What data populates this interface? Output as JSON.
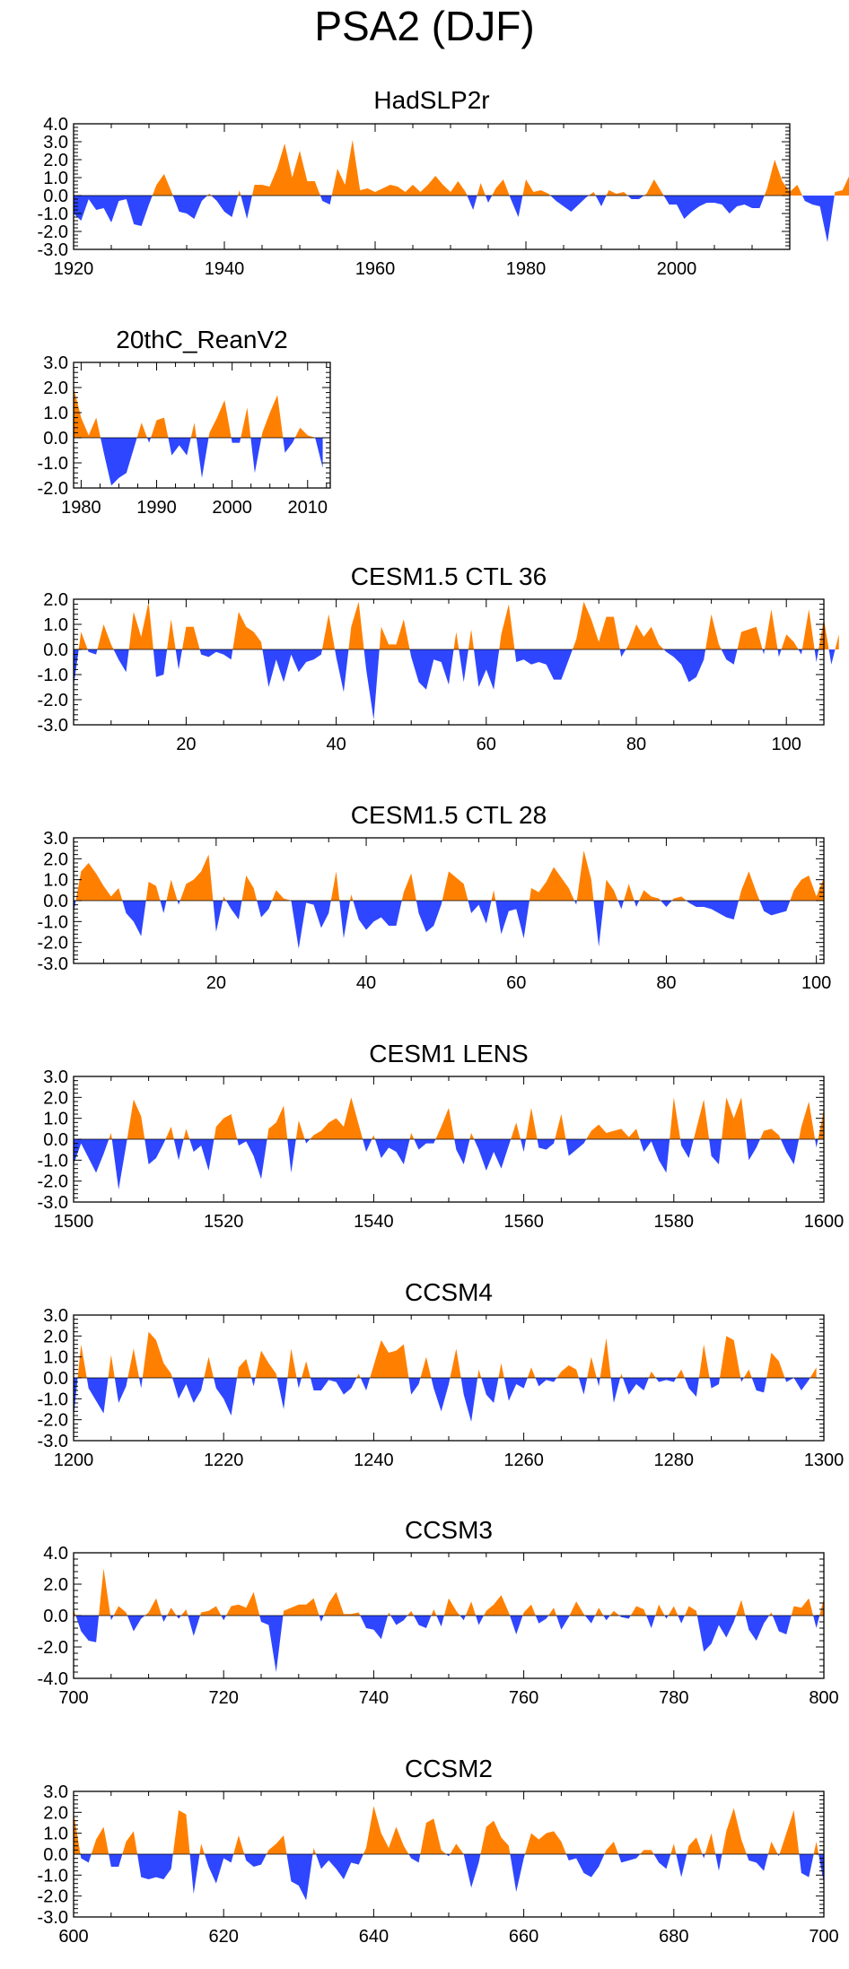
{
  "title": "PSA2 (DJF)",
  "colors": {
    "positive": "#ff8000",
    "negative": "#2e46ff",
    "axis": "#000000"
  },
  "chart_data": [
    {
      "type": "area",
      "title": "HadSLP2r",
      "xlim": [
        1920,
        2015
      ],
      "ylim": [
        -3.0,
        4.0
      ],
      "xticks": [
        1920,
        1940,
        1960,
        1980,
        2000
      ],
      "yticks": [
        "4.0",
        "3.0",
        "2.0",
        "1.0",
        "0.0",
        "-1.0",
        "-2.0",
        "-3.0"
      ],
      "ytick_values": [
        4,
        3,
        2,
        1,
        0,
        -1,
        -2,
        -3
      ],
      "x_start": 1920,
      "values": [
        -1.0,
        -1.4,
        -0.2,
        -0.8,
        -0.7,
        -1.5,
        -0.3,
        -0.2,
        -1.6,
        -1.7,
        -0.5,
        0.6,
        1.2,
        0.2,
        -0.9,
        -1.0,
        -1.3,
        -0.3,
        0.1,
        -0.3,
        -0.9,
        -1.2,
        0.3,
        -1.3,
        0.6,
        0.6,
        0.5,
        1.5,
        2.9,
        1.0,
        2.5,
        0.8,
        0.8,
        -0.3,
        -0.5,
        1.5,
        0.6,
        3.1,
        0.3,
        0.4,
        0.2,
        0.4,
        0.6,
        0.5,
        0.2,
        0.6,
        0.2,
        0.6,
        1.1,
        0.6,
        0.2,
        0.8,
        0.2,
        -0.8,
        0.7,
        -0.4,
        0.4,
        0.9,
        -0.2,
        -1.2,
        0.9,
        0.2,
        0.3,
        0.1,
        -0.3,
        -0.6,
        -0.9,
        -0.5,
        -0.1,
        0.2,
        -0.6,
        0.3,
        0.1,
        0.2,
        -0.2,
        -0.2,
        0.1,
        0.9,
        0.2,
        -0.5,
        -0.5,
        -1.3,
        -0.9,
        -0.6,
        -0.4,
        -0.4,
        -0.5,
        -1.0,
        -0.6,
        -0.5,
        -0.7,
        -0.7,
        0.4,
        2.0,
        0.8,
        0.2,
        0.6,
        -0.3,
        -0.5,
        -0.6,
        -2.6,
        0.2,
        0.3,
        1.2,
        0.2
      ]
    },
    {
      "type": "area",
      "title": "20thC_ReanV2",
      "xlim": [
        1979,
        2013
      ],
      "ylim": [
        -2.0,
        3.0
      ],
      "xticks": [
        1980,
        1990,
        2000,
        2010
      ],
      "yticks": [
        "3.0",
        "2.0",
        "1.0",
        "0.0",
        "-1.0",
        "-2.0"
      ],
      "ytick_values": [
        3,
        2,
        1,
        0,
        -1,
        -2
      ],
      "x_start": 1979,
      "values": [
        2.0,
        0.8,
        0.1,
        0.8,
        -0.6,
        -1.9,
        -1.6,
        -1.4,
        -0.4,
        0.6,
        -0.2,
        0.7,
        0.8,
        -0.7,
        -0.3,
        -0.7,
        0.6,
        -1.6,
        0.2,
        0.8,
        1.5,
        -0.2,
        -0.2,
        1.2,
        -1.4,
        0.2,
        1.0,
        1.7,
        -0.6,
        -0.2,
        0.4,
        0.1,
        0.0,
        -1.2
      ]
    },
    {
      "type": "area",
      "title": "CESM1.5 CTL 36",
      "xlim": [
        5,
        105
      ],
      "ylim": [
        -3.0,
        2.0
      ],
      "xticks": [
        20,
        40,
        60,
        80,
        100
      ],
      "yticks": [
        "2.0",
        "1.0",
        "0.0",
        "-1.0",
        "-2.0",
        "-3.0"
      ],
      "ytick_values": [
        2,
        1,
        0,
        -1,
        -2,
        -3
      ],
      "x_start": 5,
      "values": [
        -1.5,
        0.7,
        -0.1,
        -0.2,
        1.0,
        0.2,
        -0.4,
        -0.9,
        1.5,
        0.5,
        1.9,
        -1.1,
        -1.0,
        1.2,
        -0.8,
        0.9,
        0.9,
        -0.2,
        -0.3,
        -0.1,
        -0.2,
        -0.4,
        1.5,
        0.9,
        0.7,
        0.3,
        -1.5,
        -0.4,
        -1.3,
        -0.2,
        -0.9,
        -0.5,
        -0.4,
        -0.2,
        1.4,
        -0.3,
        -1.7,
        0.9,
        1.9,
        -0.8,
        -2.8,
        0.9,
        0.2,
        0.2,
        1.2,
        -0.3,
        -1.3,
        -1.6,
        -0.4,
        -0.5,
        -1.4,
        0.7,
        -1.3,
        0.8,
        -1.5,
        -0.8,
        -1.6,
        0.6,
        1.8,
        -0.5,
        -0.4,
        -0.6,
        -0.5,
        -0.6,
        -1.2,
        -1.2,
        -0.4,
        0.4,
        1.9,
        1.2,
        0.3,
        1.3,
        1.3,
        -0.3,
        0.2,
        1.0,
        0.5,
        0.9,
        0.2,
        -0.1,
        -0.3,
        -0.6,
        -1.3,
        -1.1,
        -0.4,
        1.4,
        0.2,
        -0.4,
        -0.6,
        0.7,
        0.8,
        0.9,
        -0.2,
        1.6,
        -0.3,
        0.6,
        0.3,
        -0.2,
        1.6,
        -0.5,
        1.2,
        -0.6,
        0.6
      ]
    },
    {
      "type": "area",
      "title": "CESM1.5 CTL 28",
      "xlim": [
        1,
        101
      ],
      "ylim": [
        -3.0,
        3.0
      ],
      "xticks": [
        20,
        40,
        60,
        80,
        100
      ],
      "yticks": [
        "3.0",
        "2.0",
        "1.0",
        "0.0",
        "-1.0",
        "-2.0",
        "-3.0"
      ],
      "ytick_values": [
        3,
        2,
        1,
        0,
        -1,
        -2,
        -3
      ],
      "x_start": 1,
      "values": [
        -0.6,
        1.4,
        1.8,
        1.3,
        0.7,
        0.2,
        0.6,
        -0.6,
        -1.0,
        -1.7,
        0.9,
        0.7,
        -0.6,
        1.0,
        -0.2,
        0.8,
        1.0,
        1.4,
        2.2,
        -1.5,
        0.2,
        -0.4,
        -0.9,
        1.2,
        0.6,
        -0.8,
        -0.4,
        0.5,
        0.1,
        0.0,
        -2.3,
        -0.1,
        -0.2,
        -1.3,
        -0.6,
        1.4,
        -1.8,
        0.3,
        -0.9,
        -1.4,
        -1.0,
        -0.8,
        -1.2,
        -1.2,
        0.4,
        1.3,
        -0.6,
        -1.5,
        -1.2,
        -0.2,
        1.4,
        1.1,
        0.8,
        -0.6,
        -0.2,
        -1.1,
        0.5,
        -1.6,
        -0.5,
        -0.4,
        -1.8,
        0.6,
        0.4,
        0.9,
        1.6,
        1.1,
        0.6,
        -0.2,
        2.4,
        1.0,
        -2.2,
        1.0,
        0.5,
        -0.4,
        0.8,
        -0.3,
        0.5,
        0.2,
        0.1,
        -0.3,
        0.1,
        0.2,
        -0.1,
        -0.3,
        -0.3,
        -0.4,
        -0.6,
        -0.8,
        -0.9,
        0.5,
        1.4,
        0.4,
        -0.5,
        -0.7,
        -0.6,
        -0.5,
        0.5,
        1.0,
        1.2,
        0.2,
        1.1
      ]
    },
    {
      "type": "area",
      "title": "CESM1 LENS",
      "xlim": [
        1500,
        1600
      ],
      "ylim": [
        -3.0,
        3.0
      ],
      "xticks": [
        1500,
        1520,
        1540,
        1560,
        1580,
        1600
      ],
      "yticks": [
        "3.0",
        "2.0",
        "1.0",
        "0.0",
        "-1.0",
        "-2.0",
        "-3.0"
      ],
      "ytick_values": [
        3,
        2,
        1,
        0,
        -1,
        -2,
        -3
      ],
      "x_start": 1500,
      "values": [
        -1.2,
        -0.2,
        -0.9,
        -1.6,
        -0.7,
        0.3,
        -2.4,
        -0.3,
        1.9,
        1.1,
        -1.2,
        -0.9,
        -0.2,
        0.6,
        -1.0,
        0.5,
        -0.6,
        -0.3,
        -1.5,
        0.6,
        1.0,
        1.2,
        -0.3,
        -0.1,
        -0.8,
        -1.9,
        0.5,
        0.8,
        1.6,
        -1.6,
        0.9,
        -0.2,
        0.2,
        0.4,
        0.8,
        1.0,
        0.6,
        2.0,
        0.7,
        -0.6,
        0.2,
        -0.9,
        -0.4,
        -0.6,
        -1.2,
        0.3,
        -0.5,
        -0.2,
        -0.2,
        0.6,
        1.5,
        -0.5,
        -1.2,
        0.3,
        -0.5,
        -1.5,
        -0.6,
        -1.4,
        -0.3,
        0.8,
        -0.6,
        1.5,
        -0.4,
        -0.5,
        -0.2,
        1.2,
        -0.8,
        -0.5,
        -0.2,
        0.4,
        0.7,
        0.3,
        0.4,
        0.5,
        0.1,
        0.5,
        -0.6,
        -0.1,
        -1.0,
        -1.6,
        2.0,
        -0.3,
        -0.9,
        0.5,
        1.9,
        -0.8,
        -1.2,
        2.0,
        1.0,
        2.0,
        -1.0,
        -0.4,
        0.4,
        0.5,
        0.2,
        -0.6,
        -1.2,
        0.6,
        1.8,
        -0.4,
        1.4
      ]
    },
    {
      "type": "area",
      "title": "CCSM4",
      "xlim": [
        1200,
        1300
      ],
      "ylim": [
        -3.0,
        3.0
      ],
      "xticks": [
        1200,
        1220,
        1240,
        1260,
        1280,
        1300
      ],
      "yticks": [
        "3.0",
        "2.0",
        "1.0",
        "0.0",
        "-1.0",
        "-2.0",
        "-3.0"
      ],
      "ytick_values": [
        3,
        2,
        1,
        0,
        -1,
        -2,
        -3
      ],
      "x_start": 1200,
      "values": [
        -1.9,
        1.6,
        -0.5,
        -1.1,
        -1.7,
        1.1,
        -1.2,
        -0.4,
        1.4,
        -0.5,
        2.2,
        1.8,
        0.7,
        0.2,
        -1.0,
        -0.3,
        -1.2,
        -0.6,
        1.0,
        -0.5,
        -1.0,
        -1.8,
        0.5,
        0.9,
        -0.4,
        1.3,
        0.7,
        0.2,
        -1.5,
        1.4,
        -0.5,
        0.8,
        -0.6,
        -0.6,
        -0.1,
        -0.2,
        -0.8,
        -0.5,
        0.2,
        -0.6,
        0.6,
        1.8,
        1.2,
        1.3,
        1.6,
        -0.8,
        -0.3,
        1.0,
        -0.5,
        -1.6,
        -0.3,
        1.4,
        -0.8,
        -2.1,
        0.4,
        -0.8,
        -1.2,
        0.7,
        -1.1,
        -0.3,
        -0.5,
        0.5,
        -0.4,
        -0.1,
        -0.2,
        0.3,
        0.6,
        0.4,
        -0.8,
        1.0,
        -0.4,
        1.9,
        -1.2,
        0.2,
        -0.8,
        -0.3,
        -0.6,
        0.3,
        -0.2,
        -0.1,
        -0.2,
        0.4,
        -0.5,
        -0.9,
        1.6,
        -0.5,
        -0.3,
        2.0,
        1.8,
        -0.2,
        0.4,
        -0.6,
        -0.7,
        1.2,
        0.8,
        -0.2,
        0.0,
        -0.6,
        -0.1,
        0.5
      ]
    },
    {
      "type": "area",
      "title": "CCSM3",
      "xlim": [
        700,
        800
      ],
      "ylim": [
        -4.0,
        4.0
      ],
      "xticks": [
        700,
        720,
        740,
        760,
        780,
        800
      ],
      "yticks": [
        "4.0",
        "2.0",
        "0.0",
        "-2.0",
        "-4.0"
      ],
      "ytick_values": [
        4,
        2,
        0,
        -2,
        -4
      ],
      "x_start": 700,
      "values": [
        0.4,
        -1.0,
        -1.6,
        -1.7,
        3.0,
        -0.3,
        0.6,
        0.2,
        -1.0,
        -0.2,
        0.2,
        1.1,
        -0.4,
        0.5,
        -0.2,
        0.4,
        -1.3,
        0.2,
        0.3,
        0.6,
        -0.3,
        0.6,
        0.7,
        0.5,
        1.5,
        -0.4,
        -0.6,
        -3.6,
        0.3,
        0.5,
        0.7,
        0.7,
        1.1,
        -0.4,
        0.8,
        1.5,
        0.1,
        0.1,
        0.2,
        -0.8,
        -0.9,
        -1.5,
        0.2,
        -0.6,
        -0.3,
        0.3,
        -0.6,
        -0.8,
        0.4,
        -0.7,
        1.1,
        0.3,
        -0.3,
        0.9,
        -0.6,
        0.3,
        0.7,
        1.3,
        0.2,
        -1.2,
        0.2,
        0.7,
        -0.5,
        -0.2,
        0.5,
        -0.9,
        -0.1,
        0.9,
        0.1,
        -0.5,
        0.5,
        -0.3,
        0.3,
        -0.1,
        -0.2,
        0.6,
        0.4,
        -0.8,
        0.7,
        -0.2,
        0.6,
        -0.5,
        0.6,
        0.3,
        -2.3,
        -1.8,
        -0.6,
        -1.4,
        -0.4,
        1.0,
        -0.9,
        -1.6,
        -0.5,
        0.2,
        -1.0,
        -1.2,
        0.6,
        0.5,
        1.1,
        -0.8,
        1.1
      ]
    },
    {
      "type": "area",
      "title": "CCSM2",
      "xlim": [
        600,
        700
      ],
      "ylim": [
        -3.0,
        3.0
      ],
      "xticks": [
        600,
        620,
        640,
        660,
        680,
        700
      ],
      "yticks": [
        "3.0",
        "2.0",
        "1.0",
        "0.0",
        "-1.0",
        "-2.0",
        "-3.0"
      ],
      "ytick_values": [
        3,
        2,
        1,
        0,
        -1,
        -2,
        -3
      ],
      "x_start": 600,
      "values": [
        2.0,
        -0.2,
        -0.4,
        0.7,
        1.3,
        -0.6,
        -0.6,
        0.6,
        1.1,
        -1.1,
        -1.2,
        -1.1,
        -1.2,
        -0.7,
        2.1,
        1.9,
        -1.9,
        0.5,
        -0.6,
        -1.4,
        -0.2,
        -0.4,
        0.9,
        -0.3,
        -0.6,
        -0.5,
        0.2,
        0.5,
        0.9,
        -1.3,
        -1.5,
        -2.2,
        0.3,
        -0.7,
        -0.3,
        -0.7,
        -1.2,
        -0.4,
        -0.5,
        0.3,
        2.3,
        1.0,
        0.3,
        1.3,
        0.4,
        -0.2,
        -0.4,
        1.5,
        1.7,
        0.2,
        -0.1,
        0.5,
        0.0,
        -1.6,
        -0.4,
        1.3,
        1.6,
        0.8,
        0.4,
        -1.8,
        -0.2,
        1.0,
        0.7,
        1.0,
        1.1,
        0.6,
        -0.3,
        -0.2,
        -0.9,
        -1.1,
        -0.6,
        0.2,
        0.6,
        -0.4,
        -0.3,
        -0.2,
        0.2,
        0.2,
        -0.4,
        -0.7,
        0.5,
        -1.1,
        0.4,
        0.8,
        -0.2,
        1.0,
        -0.8,
        1.1,
        2.2,
        0.7,
        -0.3,
        -0.4,
        -0.8,
        0.6,
        -0.1,
        1.0,
        2.1,
        -0.9,
        -1.1,
        0.6,
        -1.4
      ]
    }
  ]
}
